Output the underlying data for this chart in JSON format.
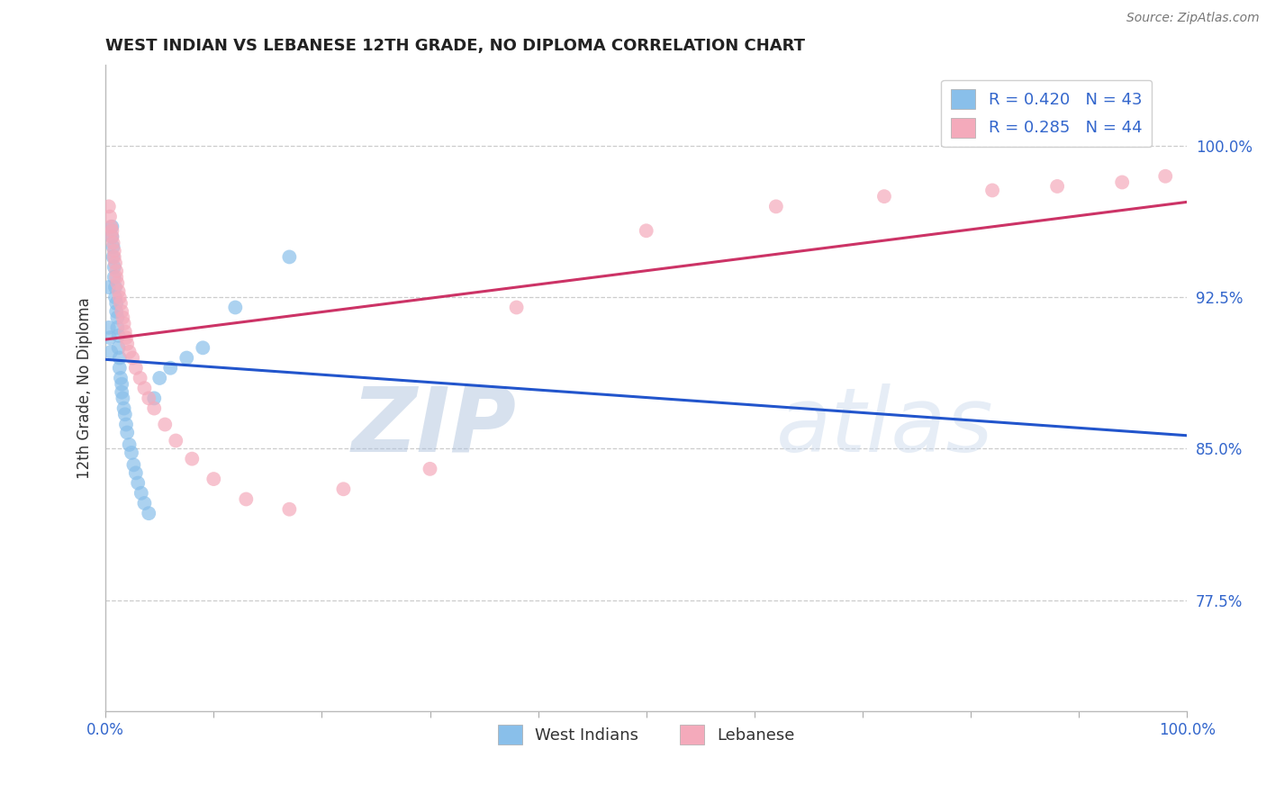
{
  "title": "WEST INDIAN VS LEBANESE 12TH GRADE, NO DIPLOMA CORRELATION CHART",
  "source_text": "Source: ZipAtlas.com",
  "ylabel": "12th Grade, No Diploma",
  "xlim": [
    0.0,
    1.0
  ],
  "ylim": [
    0.72,
    1.04
  ],
  "xticks": [
    0.0,
    0.1,
    0.2,
    0.3,
    0.4,
    0.5,
    0.6,
    0.7,
    0.8,
    0.9,
    1.0
  ],
  "xticklabels": [
    "0.0%",
    "",
    "",
    "",
    "",
    "",
    "",
    "",
    "",
    "",
    "100.0%"
  ],
  "yticks": [
    0.775,
    0.85,
    0.925,
    1.0
  ],
  "yticklabels": [
    "77.5%",
    "85.0%",
    "92.5%",
    "100.0%"
  ],
  "west_indian_color": "#89BFEA",
  "lebanese_color": "#F4AABB",
  "west_indian_line_color": "#2255CC",
  "lebanese_line_color": "#CC3366",
  "R_west_indian": 0.42,
  "N_west_indian": 43,
  "R_lebanese": 0.285,
  "N_lebanese": 44,
  "legend_labels": [
    "West Indians",
    "Lebanese"
  ],
  "watermark_zip": "ZIP",
  "watermark_atlas": "atlas",
  "wi_x": [
    0.003,
    0.003,
    0.004,
    0.005,
    0.006,
    0.006,
    0.007,
    0.007,
    0.008,
    0.008,
    0.009,
    0.009,
    0.01,
    0.01,
    0.011,
    0.011,
    0.012,
    0.012,
    0.013,
    0.013,
    0.014,
    0.015,
    0.015,
    0.016,
    0.017,
    0.018,
    0.019,
    0.02,
    0.022,
    0.024,
    0.026,
    0.028,
    0.03,
    0.033,
    0.036,
    0.04,
    0.045,
    0.05,
    0.06,
    0.075,
    0.09,
    0.12,
    0.17
  ],
  "wi_y": [
    0.93,
    0.91,
    0.905,
    0.898,
    0.96,
    0.955,
    0.95,
    0.945,
    0.94,
    0.935,
    0.93,
    0.925,
    0.922,
    0.918,
    0.915,
    0.91,
    0.906,
    0.9,
    0.895,
    0.89,
    0.885,
    0.882,
    0.878,
    0.875,
    0.87,
    0.867,
    0.862,
    0.858,
    0.852,
    0.848,
    0.842,
    0.838,
    0.833,
    0.828,
    0.823,
    0.818,
    0.875,
    0.885,
    0.89,
    0.895,
    0.9,
    0.92,
    0.945
  ],
  "leb_x": [
    0.003,
    0.004,
    0.005,
    0.006,
    0.006,
    0.007,
    0.008,
    0.008,
    0.009,
    0.01,
    0.01,
    0.011,
    0.012,
    0.013,
    0.014,
    0.015,
    0.016,
    0.017,
    0.018,
    0.019,
    0.02,
    0.022,
    0.025,
    0.028,
    0.032,
    0.036,
    0.04,
    0.045,
    0.055,
    0.065,
    0.08,
    0.1,
    0.13,
    0.17,
    0.22,
    0.3,
    0.38,
    0.5,
    0.62,
    0.72,
    0.82,
    0.88,
    0.94,
    0.98
  ],
  "leb_y": [
    0.97,
    0.965,
    0.96,
    0.958,
    0.955,
    0.952,
    0.948,
    0.945,
    0.942,
    0.938,
    0.935,
    0.932,
    0.928,
    0.925,
    0.922,
    0.918,
    0.915,
    0.912,
    0.908,
    0.905,
    0.902,
    0.898,
    0.895,
    0.89,
    0.885,
    0.88,
    0.875,
    0.87,
    0.862,
    0.854,
    0.845,
    0.835,
    0.825,
    0.82,
    0.83,
    0.84,
    0.92,
    0.958,
    0.97,
    0.975,
    0.978,
    0.98,
    0.982,
    0.985
  ]
}
